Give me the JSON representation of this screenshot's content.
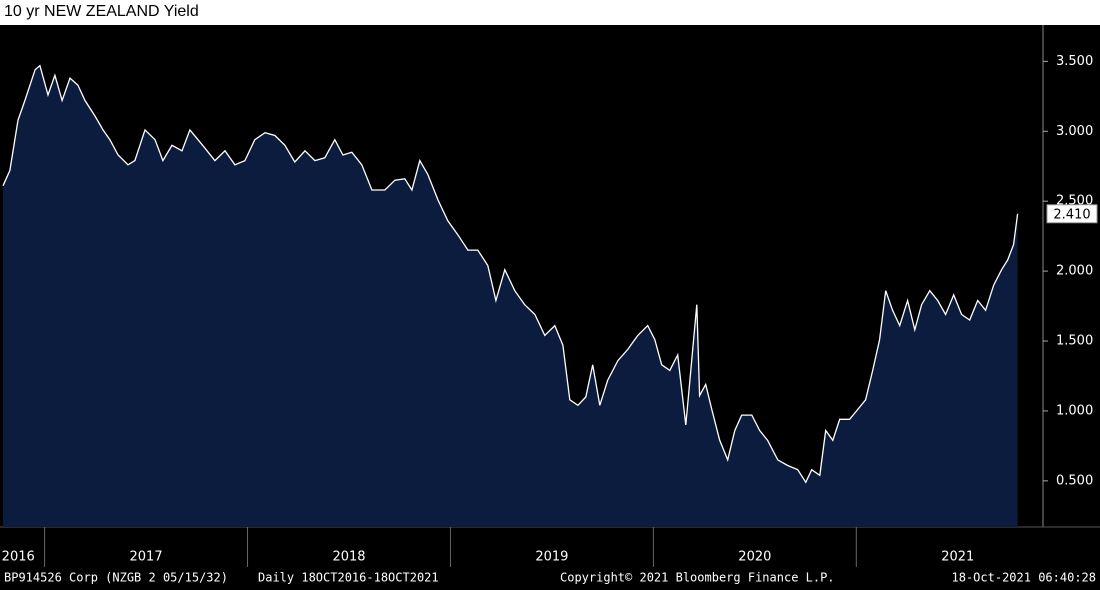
{
  "chart_data": {
    "type": "area",
    "title": "10 yr NEW ZEALAND Yield",
    "footer": {
      "security": "BP914526 Corp (NZGB 2 05/15/32)",
      "range": "Daily 18OCT2016-18OCT2021",
      "copyright": "Copyright© 2021 Bloomberg Finance L.P.",
      "timestamp": "18-Oct-2021 06:40:28"
    },
    "last_price_label": "2.410",
    "xlim": [
      2016.795,
      2021.92
    ],
    "xticks": [
      {
        "value": 2016.87,
        "label": "2016"
      },
      {
        "value": 2017.5,
        "label": "2017"
      },
      {
        "value": 2018.5,
        "label": "2018"
      },
      {
        "value": 2019.5,
        "label": "2019"
      },
      {
        "value": 2020.5,
        "label": "2020"
      },
      {
        "value": 2021.5,
        "label": "2021"
      }
    ],
    "xminorticks": [
      2017,
      2018,
      2019,
      2020,
      2021
    ],
    "ylim": [
      0.17,
      3.76
    ],
    "yticks": [
      {
        "value": 0.5,
        "label": "0.500"
      },
      {
        "value": 1,
        "label": "1.000"
      },
      {
        "value": 1.5,
        "label": "1.500"
      },
      {
        "value": 2,
        "label": "2.000"
      },
      {
        "value": 2.5,
        "label": "2.500"
      },
      {
        "value": 3,
        "label": "3.000"
      },
      {
        "value": 3.5,
        "label": "3.500"
      }
    ],
    "fill_color": "#0c1c3e",
    "line_color": "#ffffff",
    "x": [
      2016.795,
      2016.829,
      2016.869,
      2016.903,
      2016.953,
      2016.977,
      2017.017,
      2017.051,
      2017.086,
      2017.125,
      2017.164,
      2017.199,
      2017.248,
      2017.288,
      2017.322,
      2017.362,
      2017.411,
      2017.445,
      2017.495,
      2017.544,
      2017.583,
      2017.628,
      2017.677,
      2017.716,
      2017.756,
      2017.79,
      2017.839,
      2017.889,
      2017.938,
      2017.987,
      2018.036,
      2018.086,
      2018.135,
      2018.184,
      2018.233,
      2018.283,
      2018.332,
      2018.381,
      2018.43,
      2018.47,
      2018.514,
      2018.563,
      2018.613,
      2018.677,
      2018.726,
      2018.775,
      2018.81,
      2018.849,
      2018.889,
      2018.938,
      2018.987,
      2019.036,
      2019.086,
      2019.135,
      2019.184,
      2019.224,
      2019.268,
      2019.317,
      2019.366,
      2019.416,
      2019.465,
      2019.514,
      2019.554,
      2019.588,
      2019.628,
      2019.667,
      2019.701,
      2019.736,
      2019.775,
      2019.825,
      2019.874,
      2019.923,
      2019.972,
      2020.007,
      2020.041,
      2020.081,
      2020.12,
      2020.16,
      2020.189,
      2020.214,
      2020.228,
      2020.258,
      2020.288,
      2020.327,
      2020.366,
      2020.401,
      2020.435,
      2020.485,
      2020.524,
      2020.563,
      2020.613,
      2020.662,
      2020.711,
      2020.751,
      2020.78,
      2020.82,
      2020.849,
      2020.884,
      2020.918,
      2020.967,
      2021.007,
      2021.046,
      2021.081,
      2021.115,
      2021.145,
      2021.179,
      2021.214,
      2021.253,
      2021.288,
      2021.322,
      2021.362,
      2021.401,
      2021.44,
      2021.48,
      2021.519,
      2021.559,
      2021.598,
      2021.637,
      2021.677,
      2021.716,
      2021.746,
      2021.775,
      2021.795
    ],
    "series": [
      {
        "name": "10 yr NEW ZEALAND Yield",
        "values": [
          2.61,
          2.72,
          3.08,
          3.22,
          3.44,
          3.47,
          3.26,
          3.4,
          3.22,
          3.38,
          3.33,
          3.22,
          3.11,
          3.01,
          2.94,
          2.83,
          2.76,
          2.79,
          3.01,
          2.94,
          2.79,
          2.9,
          2.86,
          3.01,
          2.94,
          2.88,
          2.79,
          2.86,
          2.76,
          2.79,
          2.94,
          2.99,
          2.97,
          2.9,
          2.78,
          2.86,
          2.79,
          2.81,
          2.94,
          2.83,
          2.85,
          2.76,
          2.58,
          2.58,
          2.65,
          2.66,
          2.58,
          2.79,
          2.69,
          2.51,
          2.36,
          2.26,
          2.15,
          2.15,
          2.04,
          1.79,
          2.01,
          1.86,
          1.76,
          1.69,
          1.54,
          1.61,
          1.47,
          1.08,
          1.04,
          1.1,
          1.33,
          1.04,
          1.22,
          1.36,
          1.44,
          1.54,
          1.61,
          1.51,
          1.33,
          1.29,
          1.4,
          0.9,
          1.36,
          1.76,
          1.11,
          1.19,
          1.01,
          0.79,
          0.65,
          0.86,
          0.97,
          0.97,
          0.86,
          0.79,
          0.65,
          0.61,
          0.58,
          0.49,
          0.58,
          0.54,
          0.86,
          0.79,
          0.94,
          0.94,
          1.01,
          1.08,
          1.29,
          1.51,
          1.86,
          1.72,
          1.61,
          1.79,
          1.58,
          1.76,
          1.86,
          1.79,
          1.69,
          1.83,
          1.69,
          1.65,
          1.79,
          1.72,
          1.9,
          2.01,
          2.08,
          2.19,
          2.41
        ]
      }
    ]
  }
}
